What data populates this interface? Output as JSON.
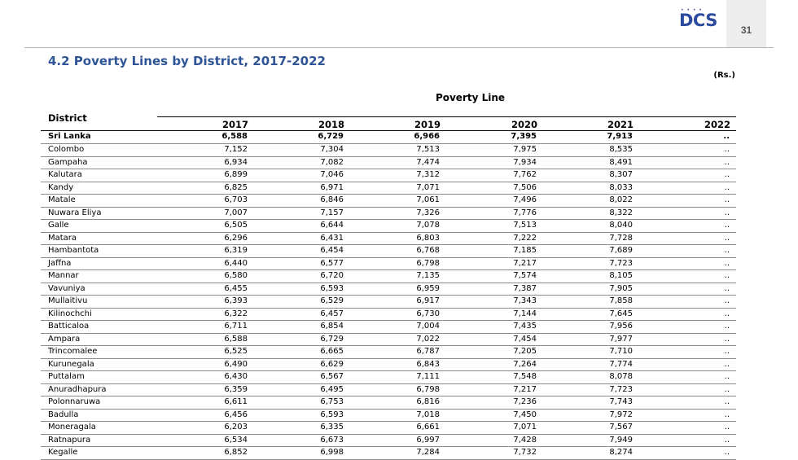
{
  "header": {
    "logo_text": "DCS",
    "page_number": "31"
  },
  "title": "4.2 Poverty Lines by District, 2017-2022",
  "unit": "(Rs.)",
  "table": {
    "group_header": "Poverty Line",
    "district_header": "District",
    "years": [
      "2017",
      "2018",
      "2019",
      "2020",
      "2021",
      "2022"
    ],
    "rows": [
      {
        "district": "Sri Lanka",
        "v": [
          "6,588",
          "6,729",
          "6,966",
          "7,395",
          "7,913",
          ".."
        ]
      },
      {
        "district": "Colombo",
        "v": [
          "7,152",
          "7,304",
          "7,513",
          "7,975",
          "8,535",
          ".."
        ]
      },
      {
        "district": "Gampaha",
        "v": [
          "6,934",
          "7,082",
          "7,474",
          "7,934",
          "8,491",
          ".."
        ]
      },
      {
        "district": "Kalutara",
        "v": [
          "6,899",
          "7,046",
          "7,312",
          "7,762",
          "8,307",
          ".."
        ]
      },
      {
        "district": "Kandy",
        "v": [
          "6,825",
          "6,971",
          "7,071",
          "7,506",
          "8,033",
          ".."
        ]
      },
      {
        "district": "Matale",
        "v": [
          "6,703",
          "6,846",
          "7,061",
          "7,496",
          "8,022",
          ".."
        ]
      },
      {
        "district": "Nuwara Eliya",
        "v": [
          "7,007",
          "7,157",
          "7,326",
          "7,776",
          "8,322",
          ".."
        ]
      },
      {
        "district": "Galle",
        "v": [
          "6,505",
          "6,644",
          "7,078",
          "7,513",
          "8,040",
          ".."
        ]
      },
      {
        "district": "Matara",
        "v": [
          "6,296",
          "6,431",
          "6,803",
          "7,222",
          "7,728",
          ".."
        ]
      },
      {
        "district": "Hambantota",
        "v": [
          "6,319",
          "6,454",
          "6,768",
          "7,185",
          "7,689",
          ".."
        ]
      },
      {
        "district": "Jaffna",
        "v": [
          "6,440",
          "6,577",
          "6,798",
          "7,217",
          "7,723",
          ".."
        ]
      },
      {
        "district": "Mannar",
        "v": [
          "6,580",
          "6,720",
          "7,135",
          "7,574",
          "8,105",
          ".."
        ]
      },
      {
        "district": "Vavuniya",
        "v": [
          "6,455",
          "6,593",
          "6,959",
          "7,387",
          "7,905",
          ".."
        ]
      },
      {
        "district": "Mullaitivu",
        "v": [
          "6,393",
          "6,529",
          "6,917",
          "7,343",
          "7,858",
          ".."
        ]
      },
      {
        "district": "Kilinochchi",
        "v": [
          "6,322",
          "6,457",
          "6,730",
          "7,144",
          "7,645",
          ".."
        ]
      },
      {
        "district": "Batticaloa",
        "v": [
          "6,711",
          "6,854",
          "7,004",
          "7,435",
          "7,956",
          ".."
        ]
      },
      {
        "district": "Ampara",
        "v": [
          "6,588",
          "6,729",
          "7,022",
          "7,454",
          "7,977",
          ".."
        ]
      },
      {
        "district": "Trincomalee",
        "v": [
          "6,525",
          "6,665",
          "6,787",
          "7,205",
          "7,710",
          ".."
        ]
      },
      {
        "district": "Kurunegala",
        "v": [
          "6,490",
          "6,629",
          "6,843",
          "7,264",
          "7,774",
          ".."
        ]
      },
      {
        "district": "Puttalam",
        "v": [
          "6,430",
          "6,567",
          "7,111",
          "7,548",
          "8,078",
          ".."
        ]
      },
      {
        "district": "Anuradhapura",
        "v": [
          "6,359",
          "6,495",
          "6,798",
          "7,217",
          "7,723",
          ".."
        ]
      },
      {
        "district": "Polonnaruwa",
        "v": [
          "6,611",
          "6,753",
          "6,816",
          "7,236",
          "7,743",
          ".."
        ]
      },
      {
        "district": "Badulla",
        "v": [
          "6,456",
          "6,593",
          "7,018",
          "7,450",
          "7,972",
          ".."
        ]
      },
      {
        "district": "Moneragala",
        "v": [
          "6,203",
          "6,335",
          "6,661",
          "7,071",
          "7,567",
          ".."
        ]
      },
      {
        "district": "Ratnapura",
        "v": [
          "6,534",
          "6,673",
          "6,997",
          "7,428",
          "7,949",
          ".."
        ]
      },
      {
        "district": "Kegalle",
        "v": [
          "6,852",
          "6,998",
          "7,284",
          "7,732",
          "8,274",
          ".."
        ]
      }
    ]
  }
}
